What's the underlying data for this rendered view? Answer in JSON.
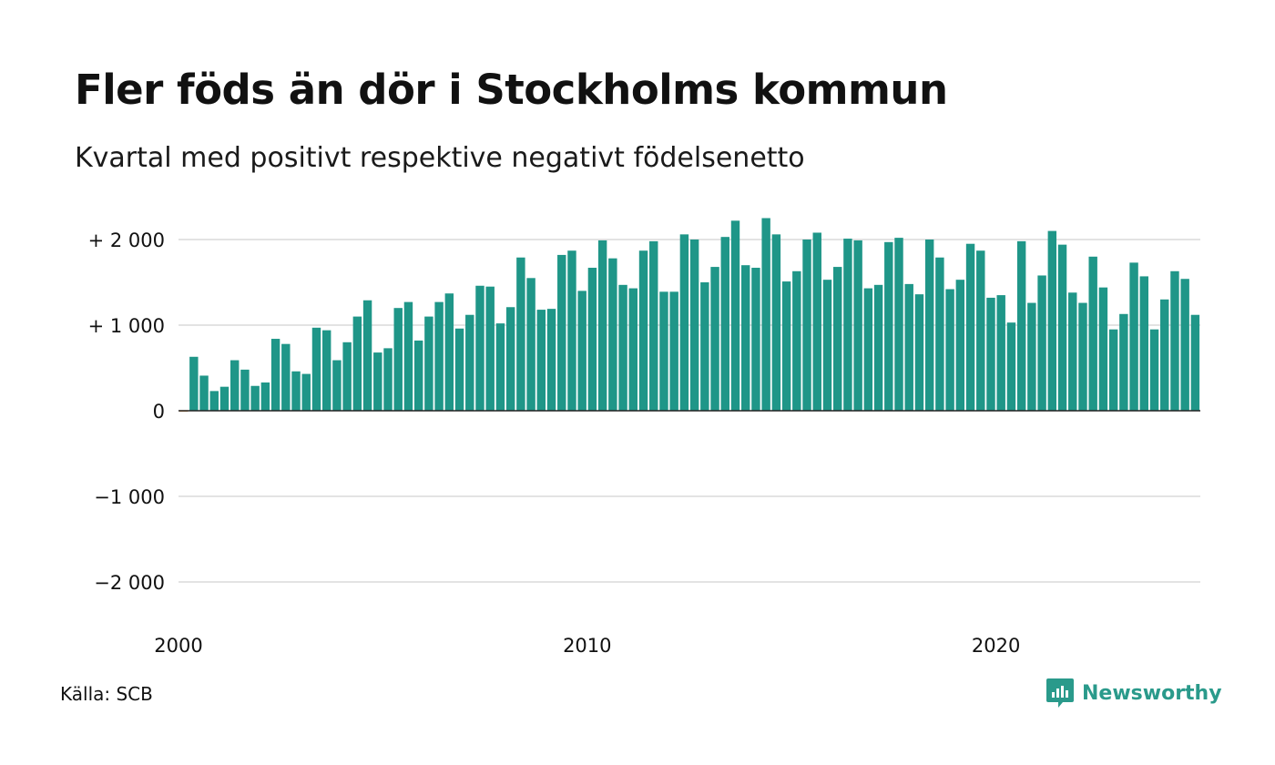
{
  "title": "Fler föds än dör i Stockholms kommun",
  "subtitle": "Kvartal med positivt respektive negativt födelsenetto",
  "source": "Källa: SCB",
  "brand": "Newsworthy",
  "colors": {
    "positive": "#1f9688",
    "negative": "#e07b1a",
    "grid": "#e3e3e3",
    "zero_line": "#222222",
    "brand": "#2a9a8b"
  },
  "chart_data": {
    "type": "bar",
    "title": "Fler föds än dör i Stockholms kommun",
    "subtitle": "Kvartal med positivt respektive negativt födelsenetto",
    "xlabel": "",
    "ylabel": "",
    "grid": true,
    "ylim": [
      -2250,
      2300
    ],
    "xlim": [
      2000,
      2025
    ],
    "y_ticks": [
      {
        "value": 2000,
        "label": "+ 2 000"
      },
      {
        "value": 1000,
        "label": "+ 1 000"
      },
      {
        "value": 0,
        "label": "0"
      },
      {
        "value": -1000,
        "label": "−1 000"
      },
      {
        "value": -2000,
        "label": "−2 000"
      }
    ],
    "x_ticks": [
      {
        "value": 2000,
        "label": "2000"
      },
      {
        "value": 2010,
        "label": "2010"
      },
      {
        "value": 2020,
        "label": "2020"
      }
    ],
    "x": [
      "2000-Q1",
      "2000-Q2",
      "2000-Q3",
      "2000-Q4",
      "2001-Q1",
      "2001-Q2",
      "2001-Q3",
      "2001-Q4",
      "2002-Q1",
      "2002-Q2",
      "2002-Q3",
      "2002-Q4",
      "2003-Q1",
      "2003-Q2",
      "2003-Q3",
      "2003-Q4",
      "2004-Q1",
      "2004-Q2",
      "2004-Q3",
      "2004-Q4",
      "2005-Q1",
      "2005-Q2",
      "2005-Q3",
      "2005-Q4",
      "2006-Q1",
      "2006-Q2",
      "2006-Q3",
      "2006-Q4",
      "2007-Q1",
      "2007-Q2",
      "2007-Q3",
      "2007-Q4",
      "2008-Q1",
      "2008-Q2",
      "2008-Q3",
      "2008-Q4",
      "2009-Q1",
      "2009-Q2",
      "2009-Q3",
      "2009-Q4",
      "2010-Q1",
      "2010-Q2",
      "2010-Q3",
      "2010-Q4",
      "2011-Q1",
      "2011-Q2",
      "2011-Q3",
      "2011-Q4",
      "2012-Q1",
      "2012-Q2",
      "2012-Q3",
      "2012-Q4",
      "2013-Q1",
      "2013-Q2",
      "2013-Q3",
      "2013-Q4",
      "2014-Q1",
      "2014-Q2",
      "2014-Q3",
      "2014-Q4",
      "2015-Q1",
      "2015-Q2",
      "2015-Q3",
      "2015-Q4",
      "2016-Q1",
      "2016-Q2",
      "2016-Q3",
      "2016-Q4",
      "2017-Q1",
      "2017-Q2",
      "2017-Q3",
      "2017-Q4",
      "2018-Q1",
      "2018-Q2",
      "2018-Q3",
      "2018-Q4",
      "2019-Q1",
      "2019-Q2",
      "2019-Q3",
      "2019-Q4",
      "2020-Q1",
      "2020-Q2",
      "2020-Q3",
      "2020-Q4",
      "2021-Q1",
      "2021-Q2",
      "2021-Q3",
      "2021-Q4",
      "2022-Q1",
      "2022-Q2",
      "2022-Q3",
      "2022-Q4",
      "2023-Q1",
      "2023-Q2",
      "2023-Q3",
      "2023-Q4",
      "2024-Q1",
      "2024-Q2",
      "2024-Q3",
      "2024-Q4"
    ],
    "values": [
      -10,
      630,
      410,
      230,
      280,
      590,
      480,
      290,
      330,
      840,
      780,
      460,
      430,
      970,
      940,
      590,
      800,
      1100,
      1290,
      680,
      730,
      1200,
      1270,
      820,
      1100,
      1270,
      1370,
      960,
      1120,
      1460,
      1450,
      1020,
      1210,
      1790,
      1550,
      1180,
      1190,
      1820,
      1870,
      1400,
      1670,
      1990,
      1780,
      1470,
      1430,
      1870,
      1980,
      1390,
      1390,
      2060,
      2000,
      1500,
      1680,
      2030,
      2220,
      1700,
      1670,
      2250,
      2060,
      1510,
      1630,
      2000,
      2080,
      1530,
      1680,
      2010,
      1990,
      1430,
      1470,
      1970,
      2020,
      1480,
      1360,
      2000,
      1790,
      1420,
      1530,
      1950,
      1870,
      1320,
      1350,
      1030,
      1980,
      1260,
      1580,
      2100,
      1940,
      1380,
      1260,
      1800,
      1440,
      950,
      1130,
      1730,
      1570,
      950,
      1300,
      1630,
      1540,
      1120
    ]
  }
}
